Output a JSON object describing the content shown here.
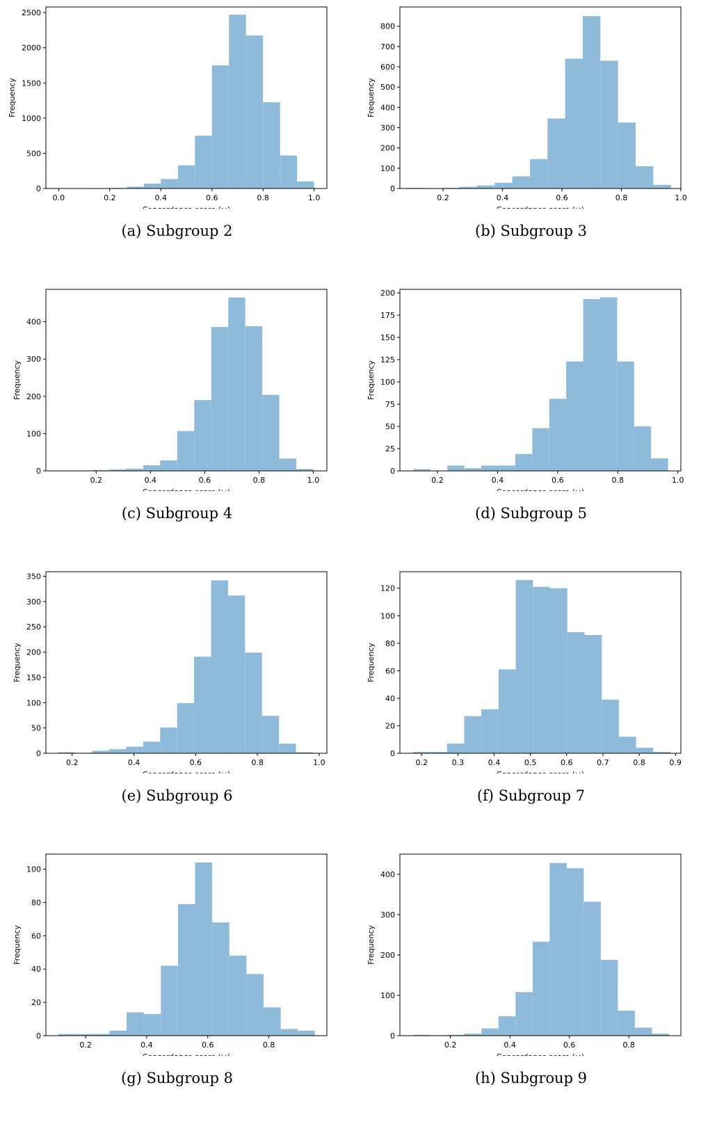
{
  "colors": {
    "bar": "#8fbad9",
    "frame": "#000000"
  },
  "chart_data": [
    {
      "type": "bar",
      "caption": "(a) Subgroup 2",
      "xlabel": "Concordance score (ω)",
      "ylabel": "Frequency",
      "xlim": [
        -0.05,
        1.05
      ],
      "ylim": [
        0,
        2580
      ],
      "xticks": [
        0.0,
        0.2,
        0.4,
        0.6,
        0.8,
        1.0
      ],
      "xtick_labels": [
        "0.0",
        "0.2",
        "0.4",
        "0.6",
        "0.8",
        "1.0"
      ],
      "yticks": [
        0,
        500,
        1000,
        1500,
        2000,
        2500
      ],
      "bin_edges": [
        0.0,
        0.0667,
        0.1333,
        0.2,
        0.2667,
        0.3333,
        0.4,
        0.4667,
        0.5333,
        0.6,
        0.6667,
        0.7333,
        0.8,
        0.8667,
        0.9333,
        1.0
      ],
      "values": [
        3,
        2,
        5,
        8,
        25,
        70,
        135,
        330,
        750,
        1750,
        2470,
        2175,
        1225,
        470,
        100
      ]
    },
    {
      "type": "bar",
      "caption": "(b) Subgroup 3",
      "xlabel": "Concordance score (ω)",
      "ylabel": "Frequency",
      "xlim": [
        0.055,
        1.0
      ],
      "ylim": [
        0,
        895
      ],
      "xticks": [
        0.2,
        0.4,
        0.6,
        0.8,
        1.0
      ],
      "xtick_labels": [
        "0.2",
        "0.4",
        "0.6",
        "0.8",
        "1.0"
      ],
      "yticks": [
        0,
        100,
        200,
        300,
        400,
        500,
        600,
        700,
        800
      ],
      "bin_edges": [
        0.077,
        0.1363,
        0.1956,
        0.2549,
        0.3142,
        0.3735,
        0.4328,
        0.4921,
        0.5514,
        0.6107,
        0.67,
        0.7293,
        0.7886,
        0.8479,
        0.9072,
        0.9665
      ],
      "values": [
        3,
        2,
        3,
        8,
        15,
        28,
        60,
        145,
        345,
        640,
        850,
        630,
        325,
        110,
        18
      ]
    },
    {
      "type": "bar",
      "caption": "(c) Subgroup 4",
      "xlabel": "Concordance score (ω)",
      "ylabel": "Frequency",
      "xlim": [
        0.015,
        1.05
      ],
      "ylim": [
        0,
        487
      ],
      "xticks": [
        0.2,
        0.4,
        0.6,
        0.8,
        1.0
      ],
      "xtick_labels": [
        "0.2",
        "0.4",
        "0.6",
        "0.8",
        "1.0"
      ],
      "yticks": [
        0,
        100,
        200,
        300,
        400
      ],
      "bin_edges": [
        0.06,
        0.1227,
        0.1853,
        0.248,
        0.3107,
        0.3733,
        0.436,
        0.4987,
        0.5613,
        0.624,
        0.6867,
        0.7493,
        0.812,
        0.8747,
        0.9373,
        1.0
      ],
      "values": [
        1,
        1,
        2,
        4,
        6,
        15,
        28,
        107,
        190,
        386,
        465,
        388,
        204,
        33,
        5
      ]
    },
    {
      "type": "bar",
      "caption": "(d) Subgroup 5",
      "xlabel": "Concordance score (ω)",
      "ylabel": "Frequency",
      "xlim": [
        0.075,
        1.01
      ],
      "ylim": [
        0,
        204
      ],
      "xticks": [
        0.2,
        0.4,
        0.6,
        0.8,
        1.0
      ],
      "xtick_labels": [
        "0.2",
        "0.4",
        "0.6",
        "0.8",
        "1.0"
      ],
      "yticks": [
        0,
        25,
        50,
        75,
        100,
        125,
        150,
        175,
        200
      ],
      "bin_edges": [
        0.12,
        0.1765,
        0.233,
        0.2895,
        0.346,
        0.4025,
        0.459,
        0.5155,
        0.572,
        0.6285,
        0.685,
        0.7415,
        0.798,
        0.8545,
        0.911,
        0.9675
      ],
      "values": [
        2,
        0,
        6,
        3,
        6,
        6,
        19,
        48,
        81,
        123,
        193,
        195,
        123,
        50,
        14
      ]
    },
    {
      "type": "bar",
      "caption": "(e) Subgroup 6",
      "xlabel": "Concordance score (ω)",
      "ylabel": "Frequency",
      "xlim": [
        0.115,
        1.025
      ],
      "ylim": [
        0,
        359
      ],
      "xticks": [
        0.2,
        0.4,
        0.6,
        0.8,
        1.0
      ],
      "xtick_labels": [
        "0.2",
        "0.4",
        "0.6",
        "0.8",
        "1.0"
      ],
      "yticks": [
        0,
        50,
        100,
        150,
        200,
        250,
        300,
        350
      ],
      "bin_edges": [
        0.155,
        0.21,
        0.265,
        0.32,
        0.375,
        0.43,
        0.485,
        0.54,
        0.595,
        0.65,
        0.705,
        0.76,
        0.815,
        0.87,
        0.925,
        0.98
      ],
      "values": [
        2,
        1,
        5,
        8,
        13,
        23,
        51,
        99,
        191,
        342,
        312,
        199,
        74,
        19,
        2
      ]
    },
    {
      "type": "bar",
      "caption": "(f) Subgroup 7",
      "xlabel": "Concordance score (ω)",
      "ylabel": "Frequency",
      "xlim": [
        0.14,
        0.915
      ],
      "ylim": [
        0,
        132
      ],
      "xticks": [
        0.2,
        0.3,
        0.4,
        0.5,
        0.6,
        0.7,
        0.8,
        0.9
      ],
      "xtick_labels": [
        "0.2",
        "0.3",
        "0.4",
        "0.5",
        "0.6",
        "0.7",
        "0.8",
        "0.9"
      ],
      "yticks": [
        0,
        20,
        40,
        60,
        80,
        100,
        120
      ],
      "bin_edges": [
        0.175,
        0.2224,
        0.2699,
        0.3173,
        0.3647,
        0.4121,
        0.4596,
        0.507,
        0.5544,
        0.6018,
        0.6493,
        0.6967,
        0.7441,
        0.7915,
        0.8389,
        0.8864
      ],
      "values": [
        1,
        1,
        7,
        27,
        32,
        61,
        126,
        121,
        120,
        88,
        86,
        39,
        12,
        4,
        1
      ]
    },
    {
      "type": "bar",
      "caption": "(g) Subgroup 8",
      "xlabel": "Concordance score (ω)",
      "ylabel": "Frequency",
      "xlim": [
        0.07,
        0.99
      ],
      "ylim": [
        0,
        109
      ],
      "xticks": [
        0.2,
        0.4,
        0.6,
        0.8
      ],
      "xtick_labels": [
        "0.2",
        "0.4",
        "0.6",
        "0.8"
      ],
      "yticks": [
        0,
        20,
        40,
        60,
        80,
        100
      ],
      "bin_edges": [
        0.11,
        0.1661,
        0.2221,
        0.2782,
        0.3342,
        0.3903,
        0.4463,
        0.5024,
        0.5584,
        0.6145,
        0.6705,
        0.7266,
        0.7826,
        0.8387,
        0.8947,
        0.9508
      ],
      "values": [
        1,
        1,
        1,
        3,
        14,
        13,
        42,
        79,
        104,
        68,
        48,
        37,
        17,
        4,
        3
      ]
    },
    {
      "type": "bar",
      "caption": "(h) Subgroup 9",
      "xlabel": "Concordance score (ω)",
      "ylabel": "Frequency",
      "xlim": [
        0.03,
        0.975
      ],
      "ylim": [
        0,
        450
      ],
      "xticks": [
        0.2,
        0.4,
        0.6,
        0.8
      ],
      "xtick_labels": [
        "0.2",
        "0.4",
        "0.6",
        "0.8"
      ],
      "yticks": [
        0,
        100,
        200,
        300,
        400
      ],
      "bin_edges": [
        0.075,
        0.1323,
        0.1897,
        0.247,
        0.3043,
        0.3617,
        0.419,
        0.4763,
        0.5337,
        0.591,
        0.6483,
        0.7057,
        0.763,
        0.8203,
        0.8777,
        0.935
      ],
      "values": [
        2,
        1,
        2,
        5,
        18,
        48,
        108,
        233,
        428,
        415,
        332,
        188,
        62,
        20,
        5
      ]
    }
  ]
}
